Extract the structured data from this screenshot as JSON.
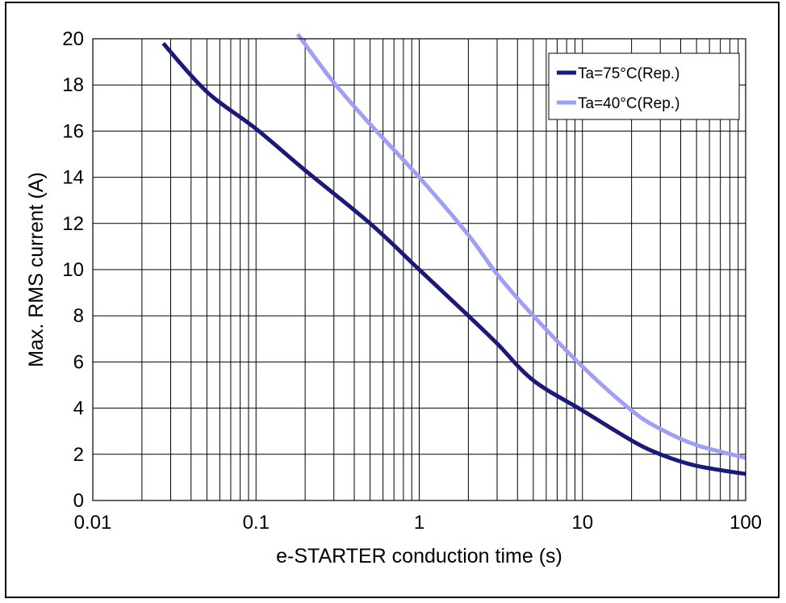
{
  "chart_data": {
    "type": "line",
    "title": "",
    "xlabel": "e-STARTER conduction time (s)",
    "ylabel": "Max. RMS current (A)",
    "xscale": "log",
    "xlim": [
      0.01,
      100
    ],
    "ylim": [
      0,
      20
    ],
    "x_ticks": [
      0.01,
      0.1,
      1,
      10,
      100
    ],
    "x_tick_labels": [
      "0.01",
      "0.1",
      "1",
      "10",
      "100"
    ],
    "y_ticks": [
      0,
      2,
      4,
      6,
      8,
      10,
      12,
      14,
      16,
      18,
      20
    ],
    "y_tick_labels": [
      "0",
      "2",
      "4",
      "6",
      "8",
      "10",
      "12",
      "14",
      "16",
      "18",
      "20"
    ],
    "grid": true,
    "legend_position": "top-right",
    "series": [
      {
        "name": "Ta=75°C(Rep.)",
        "color": "#1a1a78",
        "x": [
          0.027,
          0.05,
          0.1,
          0.2,
          0.5,
          1,
          2,
          3,
          5,
          10,
          20,
          30,
          50,
          100
        ],
        "y": [
          19.8,
          17.7,
          16.1,
          14.3,
          12.0,
          10.0,
          8.0,
          6.8,
          5.2,
          3.9,
          2.6,
          2.0,
          1.5,
          1.15
        ]
      },
      {
        "name": "Ta=40°C(Rep.)",
        "color": "#9da0f5",
        "x": [
          0.18,
          0.3,
          0.5,
          1,
          2,
          3,
          5,
          10,
          20,
          30,
          50,
          100
        ],
        "y": [
          20.2,
          18.1,
          16.3,
          14.0,
          11.5,
          9.8,
          8.0,
          5.8,
          3.9,
          3.1,
          2.4,
          1.85
        ]
      }
    ]
  }
}
